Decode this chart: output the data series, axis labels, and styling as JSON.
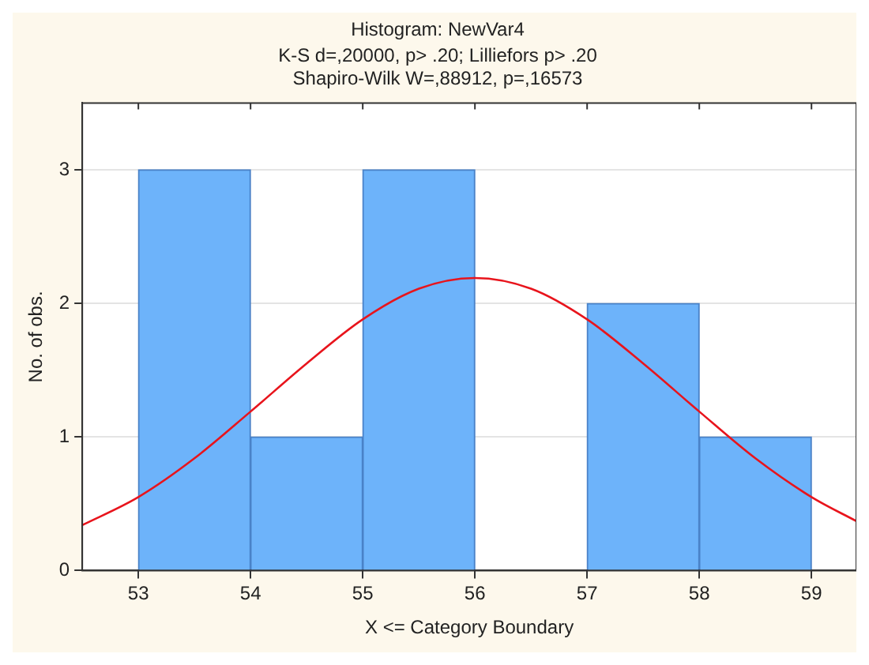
{
  "chart_data": {
    "type": "histogram",
    "title": "Histogram: NewVar4",
    "subtitle": "K-S d=,20000, p> .20; Lilliefors p> .20",
    "annotations": [
      "Shapiro-Wilk W=,88912, p=,16573"
    ],
    "xlabel": "X <= Category Boundary",
    "ylabel": "No. of obs.",
    "bins": [
      53,
      54,
      55,
      56,
      57,
      58,
      59
    ],
    "values": [
      3,
      1,
      3,
      0,
      2,
      1
    ],
    "color": "#6db3fa",
    "series": [
      {
        "type": "line",
        "color": "#e8141c",
        "x": [
          52.5,
          53,
          53.5,
          54,
          54.5,
          55,
          55.5,
          56,
          56.5,
          57,
          57.5,
          58,
          58.5,
          59,
          59.4
        ],
        "values": [
          0.34,
          0.55,
          0.84,
          1.19,
          1.55,
          1.88,
          2.11,
          2.19,
          2.11,
          1.88,
          1.55,
          1.19,
          0.84,
          0.55,
          0.37
        ]
      }
    ],
    "xlim": [
      52.5,
      59.4
    ],
    "ylim": [
      0,
      3.5
    ],
    "xticks": [
      53,
      54,
      55,
      56,
      57,
      58,
      59
    ],
    "yticks": [
      0,
      1,
      2,
      3
    ],
    "grid": "y",
    "legend": false,
    "marker": "none",
    "line_style": "solid"
  }
}
